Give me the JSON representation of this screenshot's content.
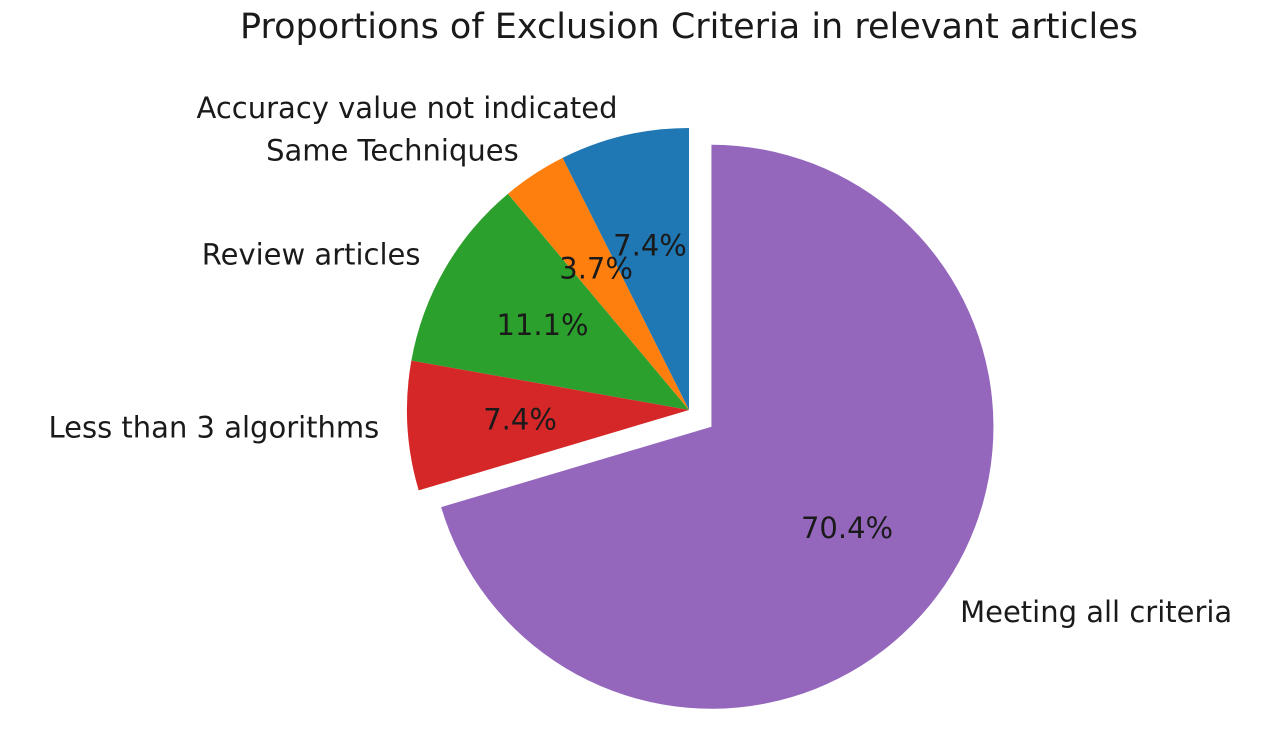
{
  "chart_data": {
    "type": "pie",
    "title": "Proportions of Exclusion Criteria in relevant articles",
    "start_angle_deg": 90,
    "direction": "counterclockwise",
    "slices": [
      {
        "label": "Accuracy value not indicated",
        "value": 7.4,
        "pct_label": "7.4%",
        "color": "#1f77b4",
        "exploded": false
      },
      {
        "label": "Same Techniques",
        "value": 3.7,
        "pct_label": "3.7%",
        "color": "#ff7f0e",
        "exploded": false
      },
      {
        "label": "Review articles",
        "value": 11.1,
        "pct_label": "11.1%",
        "color": "#2ca02c",
        "exploded": false
      },
      {
        "label": "Less than 3 algorithms",
        "value": 7.4,
        "pct_label": "7.4%",
        "color": "#d62728",
        "exploded": false
      },
      {
        "label": "Meeting all criteria",
        "value": 70.4,
        "pct_label": "70.4%",
        "color": "#9467bd",
        "exploded": true
      }
    ]
  }
}
